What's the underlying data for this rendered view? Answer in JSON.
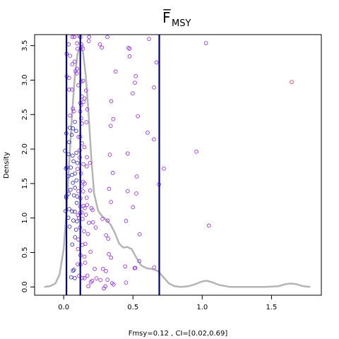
{
  "chart_data": {
    "type": "scatter",
    "title": "F̅",
    "title_subscript": "MSY",
    "ylabel": "Density",
    "xlabel": "Fmsy=0.12 , CI=[0.02,0.69]",
    "xlim": [
      -0.21,
      1.86
    ],
    "ylim": [
      -0.12,
      3.66
    ],
    "x_ticks": [
      0,
      0.5,
      1.0,
      1.5
    ],
    "x_tick_labels": [
      "0.0",
      "0.5",
      "1.0",
      "1.5"
    ],
    "y_ticks": [
      0,
      0.5,
      1.0,
      1.5,
      2.0,
      2.5,
      3.0,
      3.5
    ],
    "y_tick_labels": [
      "0.0",
      "0.5",
      "1.0",
      "1.5",
      "2.0",
      "2.5",
      "3.0",
      "3.5"
    ],
    "vlines": [
      0.02,
      0.12,
      0.69
    ],
    "vline_color": "#000080",
    "density_color": "#b4b4b4",
    "point_color_main": "#9b30ff",
    "point_color_low": "#3b2fd8",
    "point_color_high": "#ff3b3b",
    "density_curve": [
      [
        -0.14,
        0.0
      ],
      [
        -0.1,
        0.01
      ],
      [
        -0.06,
        0.05
      ],
      [
        -0.03,
        0.18
      ],
      [
        0.0,
        0.55
      ],
      [
        0.02,
        1.1
      ],
      [
        0.04,
        1.8
      ],
      [
        0.06,
        2.5
      ],
      [
        0.08,
        3.05
      ],
      [
        0.1,
        3.38
      ],
      [
        0.12,
        3.5
      ],
      [
        0.14,
        3.4
      ],
      [
        0.16,
        3.05
      ],
      [
        0.18,
        2.5
      ],
      [
        0.2,
        1.85
      ],
      [
        0.22,
        1.35
      ],
      [
        0.25,
        1.1
      ],
      [
        0.28,
        1.02
      ],
      [
        0.31,
        0.97
      ],
      [
        0.34,
        0.9
      ],
      [
        0.37,
        0.78
      ],
      [
        0.4,
        0.63
      ],
      [
        0.43,
        0.57
      ],
      [
        0.46,
        0.58
      ],
      [
        0.49,
        0.55
      ],
      [
        0.52,
        0.44
      ],
      [
        0.56,
        0.31
      ],
      [
        0.6,
        0.27
      ],
      [
        0.64,
        0.26
      ],
      [
        0.68,
        0.23
      ],
      [
        0.72,
        0.14
      ],
      [
        0.76,
        0.05
      ],
      [
        0.8,
        0.01
      ],
      [
        0.85,
        0.0
      ],
      [
        0.9,
        0.01
      ],
      [
        0.95,
        0.04
      ],
      [
        1.0,
        0.08
      ],
      [
        1.03,
        0.09
      ],
      [
        1.07,
        0.07
      ],
      [
        1.12,
        0.03
      ],
      [
        1.2,
        0.0
      ],
      [
        1.3,
        0.0
      ],
      [
        1.45,
        0.0
      ],
      [
        1.55,
        0.01
      ],
      [
        1.6,
        0.04
      ],
      [
        1.64,
        0.05
      ],
      [
        1.68,
        0.04
      ],
      [
        1.73,
        0.01
      ],
      [
        1.78,
        0.0
      ]
    ],
    "points": [
      [
        0.063,
        3.625
      ],
      [
        0.077,
        3.625
      ],
      [
        0.112,
        3.638
      ],
      [
        0.121,
        3.625
      ],
      [
        0.183,
        3.625
      ],
      [
        0.315,
        3.625
      ],
      [
        0.036,
        3.519
      ],
      [
        0.097,
        3.533
      ],
      [
        0.1,
        3.455
      ],
      [
        0.127,
        3.519
      ],
      [
        0.129,
        3.482
      ],
      [
        0.139,
        3.455
      ],
      [
        0.181,
        3.567
      ],
      [
        0.261,
        3.519
      ],
      [
        0.276,
        3.472
      ],
      [
        0.468,
        3.466
      ],
      [
        0.476,
        3.455
      ],
      [
        0.616,
        3.598
      ],
      [
        1.027,
        3.536
      ],
      [
        1.646,
        2.972
      ],
      [
        0.021,
        3.381
      ],
      [
        0.046,
        3.353
      ],
      [
        0.062,
        3.231
      ],
      [
        0.079,
        3.269
      ],
      [
        0.097,
        3.163
      ],
      [
        0.021,
        3.055
      ],
      [
        0.039,
        3.031
      ],
      [
        0.086,
        3.129
      ],
      [
        0.095,
        3.098
      ],
      [
        0.126,
        2.978
      ],
      [
        0.14,
        2.99
      ],
      [
        0.375,
        3.123
      ],
      [
        0.52,
        3.057
      ],
      [
        0.476,
        3.344
      ],
      [
        0.67,
        3.256
      ],
      [
        0.04,
        2.862
      ],
      [
        0.059,
        2.862
      ],
      [
        0.106,
        2.925
      ],
      [
        0.131,
        2.763
      ],
      [
        0.15,
        2.733
      ],
      [
        0.161,
        2.849
      ],
      [
        0.12,
        2.668
      ],
      [
        0.144,
        2.685
      ],
      [
        0.067,
        2.586
      ],
      [
        0.074,
        2.547
      ],
      [
        0.046,
        2.486
      ],
      [
        0.126,
        2.64
      ],
      [
        0.119,
        2.545
      ],
      [
        0.17,
        2.575
      ],
      [
        0.343,
        2.693
      ],
      [
        0.514,
        2.961
      ],
      [
        0.498,
        2.808
      ],
      [
        0.652,
        2.894
      ],
      [
        0.358,
        2.434
      ],
      [
        0.339,
        2.337
      ],
      [
        0.131,
        2.37
      ],
      [
        0.126,
        2.445
      ],
      [
        0.081,
        2.394
      ],
      [
        0.067,
        2.3
      ],
      [
        0.044,
        2.308
      ],
      [
        0.164,
        2.39
      ],
      [
        0.09,
        2.264
      ],
      [
        0.04,
        2.1
      ],
      [
        0.058,
        2.206
      ],
      [
        0.107,
        2.175
      ],
      [
        0.131,
        2.085
      ],
      [
        0.119,
        2.18
      ],
      [
        0.535,
        2.476
      ],
      [
        0.606,
        2.238
      ],
      [
        0.651,
        2.14
      ],
      [
        0.958,
        1.963
      ],
      [
        0.019,
        2.227
      ],
      [
        0.01,
        1.975
      ],
      [
        0.036,
        1.926
      ],
      [
        0.065,
        1.905
      ],
      [
        0.092,
        1.946
      ],
      [
        0.116,
        1.981
      ],
      [
        0.15,
        2.027
      ],
      [
        0.168,
        1.882
      ],
      [
        0.143,
        1.78
      ],
      [
        0.116,
        1.876
      ],
      [
        0.099,
        1.8
      ],
      [
        0.071,
        1.823
      ],
      [
        0.051,
        1.732
      ],
      [
        0.022,
        1.733
      ],
      [
        0.016,
        1.718
      ],
      [
        0.033,
        1.606
      ],
      [
        0.06,
        1.625
      ],
      [
        0.082,
        1.646
      ],
      [
        0.1,
        1.712
      ],
      [
        0.125,
        1.645
      ],
      [
        0.167,
        1.748
      ],
      [
        0.19,
        1.8
      ],
      [
        0.333,
        1.919
      ],
      [
        0.355,
        1.654
      ],
      [
        0.462,
        1.936
      ],
      [
        0.527,
        1.601
      ],
      [
        0.723,
        1.717
      ],
      [
        0.688,
        1.487
      ],
      [
        0.462,
        1.39
      ],
      [
        0.524,
        1.355
      ],
      [
        0.066,
        1.51
      ],
      [
        0.092,
        1.545
      ],
      [
        0.131,
        1.457
      ],
      [
        0.152,
        1.5
      ],
      [
        0.14,
        1.524
      ],
      [
        0.106,
        1.389
      ],
      [
        0.081,
        1.438
      ],
      [
        0.049,
        1.409
      ],
      [
        0.036,
        1.353
      ],
      [
        0.019,
        1.317
      ],
      [
        0.018,
        1.295
      ],
      [
        0.074,
        1.328
      ],
      [
        0.097,
        1.313
      ],
      [
        0.121,
        1.285
      ],
      [
        0.141,
        1.386
      ],
      [
        0.166,
        1.294
      ],
      [
        0.191,
        1.398
      ],
      [
        0.328,
        1.423
      ],
      [
        0.094,
        1.218
      ],
      [
        0.12,
        1.166
      ],
      [
        0.143,
        1.176
      ],
      [
        0.014,
        1.1
      ],
      [
        0.04,
        1.13
      ],
      [
        0.06,
        1.095
      ],
      [
        0.08,
        1.092
      ],
      [
        0.103,
        1.043
      ],
      [
        0.118,
        1.07
      ],
      [
        0.13,
        1.08
      ],
      [
        0.152,
        1.144
      ],
      [
        0.169,
        1.189
      ],
      [
        0.2,
        1.141
      ],
      [
        0.209,
        1.114
      ],
      [
        0.341,
        1.231
      ],
      [
        0.5,
        1.156
      ],
      [
        1.049,
        0.89
      ],
      [
        0.548,
        0.763
      ],
      [
        0.033,
        1.005
      ],
      [
        0.07,
        0.964
      ],
      [
        0.096,
        0.95
      ],
      [
        0.11,
        1.004
      ],
      [
        0.136,
        0.986
      ],
      [
        0.16,
        1.047
      ],
      [
        0.182,
        0.93
      ],
      [
        0.211,
        0.937
      ],
      [
        0.231,
        0.862
      ],
      [
        0.28,
        0.987
      ],
      [
        0.317,
        0.962
      ],
      [
        0.45,
        0.957
      ],
      [
        0.043,
        0.874
      ],
      [
        0.09,
        0.831
      ],
      [
        0.118,
        0.861
      ],
      [
        0.147,
        0.807
      ],
      [
        0.175,
        0.766
      ],
      [
        0.106,
        0.688
      ],
      [
        0.135,
        0.61
      ],
      [
        0.156,
        0.625
      ],
      [
        0.082,
        0.72
      ],
      [
        0.062,
        0.616
      ],
      [
        0.103,
        0.551
      ],
      [
        0.121,
        0.46
      ],
      [
        0.15,
        0.438
      ],
      [
        0.194,
        0.51
      ],
      [
        0.306,
        0.75
      ],
      [
        0.322,
        0.7
      ],
      [
        0.326,
        0.475
      ],
      [
        0.342,
        0.425
      ],
      [
        0.067,
        0.234
      ],
      [
        0.074,
        0.249
      ],
      [
        0.101,
        0.329
      ],
      [
        0.121,
        0.325
      ],
      [
        0.155,
        0.351
      ],
      [
        0.171,
        0.164
      ],
      [
        0.196,
        0.067
      ],
      [
        0.205,
        0.088
      ],
      [
        0.224,
        0.261
      ],
      [
        0.284,
        0.262
      ],
      [
        0.305,
        0.23
      ],
      [
        0.316,
        0.104
      ],
      [
        0.35,
        0.054
      ],
      [
        0.36,
        0.035
      ],
      [
        0.444,
        0.297
      ],
      [
        0.45,
        0.063
      ],
      [
        0.517,
        0.275
      ],
      [
        0.512,
        0.272
      ],
      [
        0.546,
        0.375
      ],
      [
        0.653,
        0.285
      ],
      [
        0.054,
        0.139
      ],
      [
        0.08,
        0.128
      ],
      [
        0.111,
        0.161
      ],
      [
        0.135,
        0.13
      ],
      [
        0.151,
        0.127
      ],
      [
        0.178,
        0.01
      ],
      [
        0.236,
        0.125
      ],
      [
        0.265,
        0.099
      ],
      [
        0.29,
        -0.021
      ],
      [
        0.301,
        0.009
      ]
    ]
  }
}
